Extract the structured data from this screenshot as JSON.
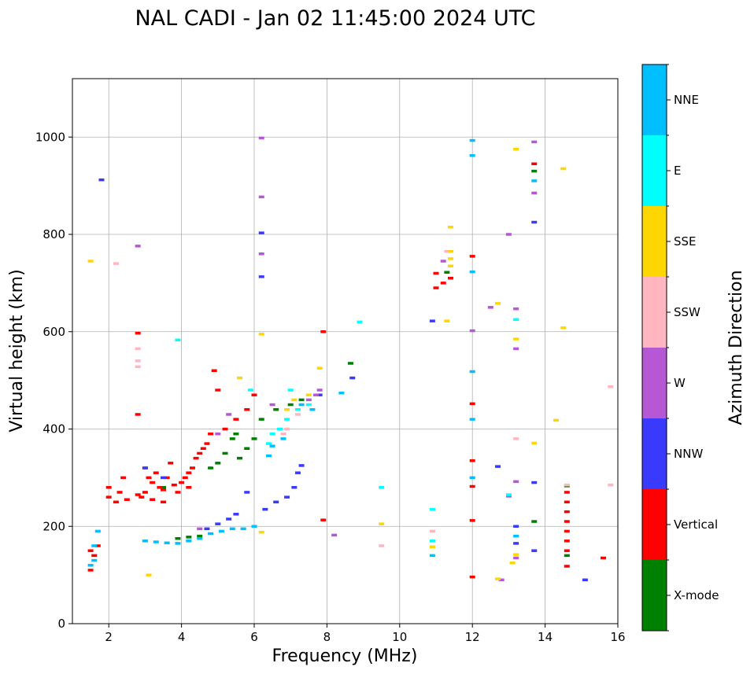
{
  "chart_data": {
    "type": "scatter",
    "title": "NAL CADI - Jan 02 11:45:00 2024 UTC",
    "xlabel": "Frequency (MHz)",
    "ylabel": "Virtual height (km)",
    "xlim": [
      1,
      16
    ],
    "ylim": [
      0,
      1120
    ],
    "xticks": [
      2,
      4,
      6,
      8,
      10,
      12,
      14,
      16
    ],
    "yticks": [
      0,
      200,
      400,
      600,
      800,
      1000
    ],
    "grid": true,
    "colorbar": {
      "label": "Azimuth Direction",
      "categories": [
        {
          "name": "X-mode",
          "color": "#008000"
        },
        {
          "name": "Vertical",
          "color": "#ff0000"
        },
        {
          "name": "NNW",
          "color": "#3a3aff"
        },
        {
          "name": "W",
          "color": "#b657d6"
        },
        {
          "name": "SSW",
          "color": "#ffb6c1"
        },
        {
          "name": "SSE",
          "color": "#ffd700"
        },
        {
          "name": "E",
          "color": "#00ffff"
        },
        {
          "name": "NNE",
          "color": "#00bfff"
        }
      ]
    },
    "series": [
      {
        "name": "X-mode",
        "points": [
          [
            3.9,
            175
          ],
          [
            4.2,
            178
          ],
          [
            4.5,
            180
          ],
          [
            5.0,
            330
          ],
          [
            5.2,
            350
          ],
          [
            5.4,
            380
          ],
          [
            5.6,
            340
          ],
          [
            5.8,
            360
          ],
          [
            6.0,
            380
          ],
          [
            6.6,
            440
          ],
          [
            7.0,
            450
          ],
          [
            7.3,
            460
          ],
          [
            8.65,
            535
          ],
          [
            11.3,
            722
          ],
          [
            13.7,
            930
          ],
          [
            13.7,
            210
          ],
          [
            14.6,
            283
          ],
          [
            14.6,
            140
          ],
          [
            5.5,
            390
          ],
          [
            6.2,
            420
          ],
          [
            4.8,
            320
          ],
          [
            3.5,
            280
          ]
        ]
      },
      {
        "name": "Vertical",
        "points": [
          [
            1.5,
            110
          ],
          [
            1.6,
            140
          ],
          [
            1.7,
            160
          ],
          [
            1.5,
            150
          ],
          [
            2.0,
            260
          ],
          [
            2.0,
            280
          ],
          [
            2.2,
            250
          ],
          [
            2.3,
            270
          ],
          [
            2.4,
            300
          ],
          [
            2.5,
            255
          ],
          [
            2.8,
            265
          ],
          [
            2.9,
            260
          ],
          [
            3.0,
            270
          ],
          [
            3.0,
            320
          ],
          [
            3.1,
            300
          ],
          [
            3.2,
            290
          ],
          [
            3.3,
            310
          ],
          [
            3.4,
            280
          ],
          [
            3.5,
            275
          ],
          [
            3.6,
            300
          ],
          [
            3.7,
            330
          ],
          [
            3.8,
            285
          ],
          [
            3.9,
            270
          ],
          [
            4.0,
            290
          ],
          [
            4.1,
            300
          ],
          [
            4.2,
            310
          ],
          [
            4.3,
            320
          ],
          [
            4.4,
            340
          ],
          [
            4.5,
            350
          ],
          [
            4.6,
            360
          ],
          [
            4.7,
            370
          ],
          [
            4.8,
            390
          ],
          [
            4.9,
            520
          ],
          [
            5.0,
            480
          ],
          [
            5.2,
            400
          ],
          [
            5.5,
            420
          ],
          [
            5.8,
            440
          ],
          [
            6.0,
            470
          ],
          [
            2.8,
            597
          ],
          [
            2.8,
            430
          ],
          [
            7.9,
            600
          ],
          [
            7.9,
            213
          ],
          [
            11.0,
            690
          ],
          [
            11.0,
            720
          ],
          [
            11.2,
            700
          ],
          [
            11.4,
            710
          ],
          [
            12.0,
            755
          ],
          [
            12.0,
            452
          ],
          [
            12.0,
            335
          ],
          [
            12.0,
            282
          ],
          [
            12.0,
            212
          ],
          [
            12.0,
            96
          ],
          [
            13.7,
            945
          ],
          [
            14.6,
            270
          ],
          [
            14.6,
            250
          ],
          [
            14.6,
            230
          ],
          [
            14.6,
            210
          ],
          [
            14.6,
            190
          ],
          [
            14.6,
            170
          ],
          [
            14.6,
            150
          ],
          [
            14.6,
            118
          ],
          [
            15.6,
            135
          ],
          [
            3.5,
            250
          ],
          [
            3.2,
            255
          ],
          [
            4.2,
            280
          ]
        ]
      },
      {
        "name": "NNW",
        "points": [
          [
            1.8,
            912
          ],
          [
            6.2,
            803
          ],
          [
            6.2,
            713
          ],
          [
            4.7,
            195
          ],
          [
            5.0,
            205
          ],
          [
            5.3,
            215
          ],
          [
            5.5,
            225
          ],
          [
            5.8,
            270
          ],
          [
            6.3,
            235
          ],
          [
            6.6,
            250
          ],
          [
            6.9,
            260
          ],
          [
            7.1,
            280
          ],
          [
            7.2,
            310
          ],
          [
            7.3,
            325
          ],
          [
            7.8,
            470
          ],
          [
            8.7,
            505
          ],
          [
            10.9,
            622
          ],
          [
            12.7,
            323
          ],
          [
            13.7,
            825
          ],
          [
            13.7,
            290
          ],
          [
            13.2,
            200
          ],
          [
            13.2,
            165
          ],
          [
            13.7,
            150
          ],
          [
            15.1,
            90
          ],
          [
            3.0,
            320
          ],
          [
            3.5,
            300
          ]
        ]
      },
      {
        "name": "W",
        "points": [
          [
            2.8,
            776
          ],
          [
            6.2,
            877
          ],
          [
            6.2,
            760
          ],
          [
            6.2,
            998
          ],
          [
            13.0,
            800
          ],
          [
            13.7,
            990
          ],
          [
            13.7,
            885
          ],
          [
            12.5,
            650
          ],
          [
            13.2,
            647
          ],
          [
            13.2,
            565
          ],
          [
            13.2,
            292
          ],
          [
            13.0,
            262
          ],
          [
            13.2,
            135
          ],
          [
            12.8,
            90
          ],
          [
            7.5,
            460
          ],
          [
            7.7,
            470
          ],
          [
            7.8,
            480
          ],
          [
            4.5,
            195
          ],
          [
            5.0,
            390
          ],
          [
            5.3,
            430
          ],
          [
            11.2,
            745
          ],
          [
            8.2,
            182
          ],
          [
            12.0,
            602
          ],
          [
            6.5,
            450
          ]
        ]
      },
      {
        "name": "SSW",
        "points": [
          [
            2.2,
            740
          ],
          [
            2.8,
            565
          ],
          [
            2.8,
            540
          ],
          [
            2.8,
            528
          ],
          [
            9.5,
            160
          ],
          [
            10.9,
            190
          ],
          [
            11.3,
            765
          ],
          [
            13.2,
            380
          ],
          [
            15.8,
            487
          ],
          [
            15.8,
            285
          ],
          [
            14.6,
            285
          ],
          [
            6.8,
            390
          ],
          [
            6.9,
            400
          ],
          [
            7.2,
            430
          ]
        ]
      },
      {
        "name": "SSE",
        "points": [
          [
            1.5,
            745
          ],
          [
            3.1,
            100
          ],
          [
            5.6,
            505
          ],
          [
            6.2,
            595
          ],
          [
            6.2,
            188
          ],
          [
            6.9,
            440
          ],
          [
            7.1,
            460
          ],
          [
            7.5,
            470
          ],
          [
            7.8,
            525
          ],
          [
            9.5,
            205
          ],
          [
            10.9,
            158
          ],
          [
            11.4,
            815
          ],
          [
            11.4,
            765
          ],
          [
            11.4,
            750
          ],
          [
            11.4,
            735
          ],
          [
            11.3,
            622
          ],
          [
            12.7,
            92
          ],
          [
            12.7,
            658
          ],
          [
            13.1,
            125
          ],
          [
            13.2,
            975
          ],
          [
            13.2,
            585
          ],
          [
            13.2,
            142
          ],
          [
            14.3,
            418
          ],
          [
            14.5,
            935
          ],
          [
            14.5,
            608
          ],
          [
            13.7,
            371
          ]
        ]
      },
      {
        "name": "E",
        "points": [
          [
            3.9,
            583
          ],
          [
            6.4,
            370
          ],
          [
            6.5,
            390
          ],
          [
            6.7,
            400
          ],
          [
            6.9,
            420
          ],
          [
            7.2,
            440
          ],
          [
            7.5,
            450
          ],
          [
            8.9,
            620
          ],
          [
            9.5,
            280
          ],
          [
            10.9,
            235
          ],
          [
            10.9,
            170
          ],
          [
            13.0,
            265
          ],
          [
            13.2,
            625
          ],
          [
            7.0,
            480
          ],
          [
            5.9,
            480
          ]
        ]
      },
      {
        "name": "NNE",
        "points": [
          [
            1.5,
            120
          ],
          [
            1.6,
            130
          ],
          [
            1.6,
            160
          ],
          [
            1.7,
            190
          ],
          [
            3.0,
            170
          ],
          [
            3.3,
            168
          ],
          [
            3.6,
            166
          ],
          [
            3.9,
            165
          ],
          [
            4.2,
            170
          ],
          [
            4.5,
            175
          ],
          [
            4.8,
            185
          ],
          [
            5.1,
            190
          ],
          [
            5.4,
            195
          ],
          [
            5.7,
            195
          ],
          [
            6.0,
            200
          ],
          [
            6.4,
            345
          ],
          [
            6.5,
            365
          ],
          [
            8.4,
            474
          ],
          [
            10.9,
            140
          ],
          [
            12.0,
            993
          ],
          [
            12.0,
            962
          ],
          [
            12.0,
            723
          ],
          [
            12.0,
            518
          ],
          [
            12.0,
            420
          ],
          [
            12.0,
            300
          ],
          [
            13.2,
            180
          ],
          [
            13.7,
            910
          ],
          [
            7.3,
            450
          ],
          [
            7.6,
            440
          ],
          [
            6.8,
            380
          ]
        ]
      }
    ]
  }
}
